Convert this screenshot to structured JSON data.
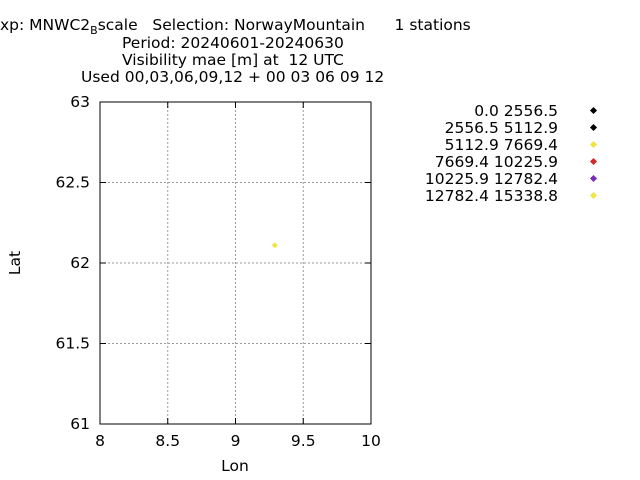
{
  "header": {
    "line1_a": "xp: MNWC2",
    "line1_sub": "B",
    "line1_b": "scale   Selection: NorwayMountain      1 stations",
    "line2": "Period: 20240601-20240630",
    "line3": "Visibility mae [m] at  12 UTC",
    "line4": "Used 00,03,06,09,12 + 00 03 06 09 12"
  },
  "legend": [
    {
      "label": "0.0 2556.5",
      "color": "#000000"
    },
    {
      "label": "2556.5 5112.9",
      "color": "#000000"
    },
    {
      "label": "5112.9 7669.4",
      "color": "#f0e442"
    },
    {
      "label": "7669.4 10225.9",
      "color": "#d62728"
    },
    {
      "label": "10225.9 12782.4",
      "color": "#7b2cbf"
    },
    {
      "label": "12782.4 15338.8",
      "color": "#f0e442"
    }
  ],
  "chart_data": {
    "type": "scatter",
    "xlabel": "Lon",
    "ylabel": "Lat",
    "xlim": [
      8,
      10
    ],
    "ylim": [
      61,
      63
    ],
    "x_ticks": [
      "8",
      "8.5",
      "9",
      "9.5",
      "10"
    ],
    "y_ticks": [
      "61",
      "61.5",
      "62",
      "62.5",
      "63"
    ],
    "grid": true,
    "points": [
      {
        "x": 9.29,
        "y": 62.11,
        "color": "#f0e442"
      }
    ]
  }
}
